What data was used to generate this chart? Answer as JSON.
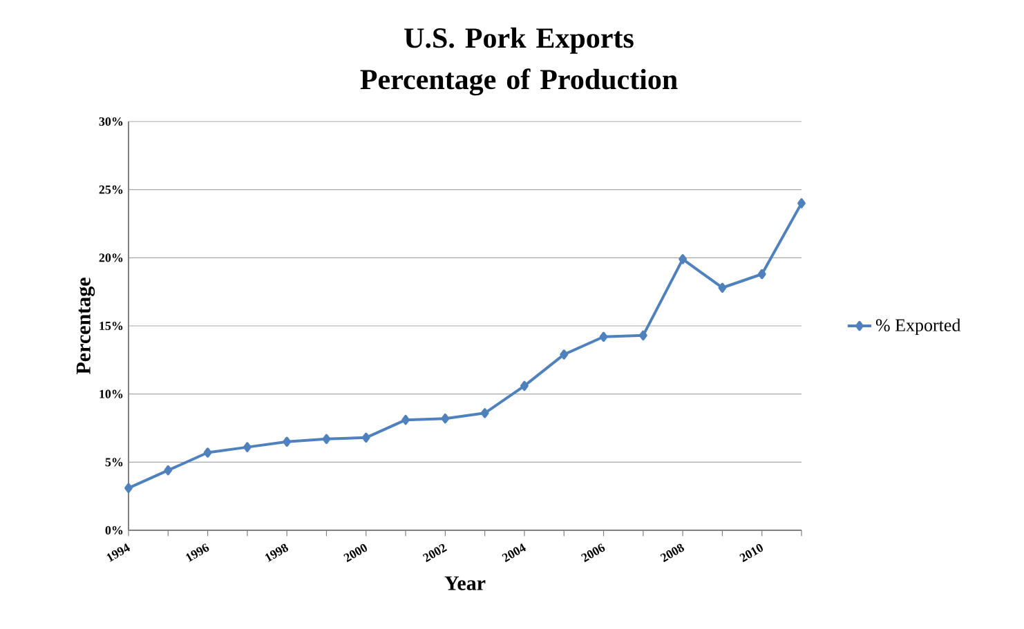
{
  "chart_data": {
    "type": "line",
    "title": "U.S. Pork Exports Percentage of Production",
    "xlabel": "Year",
    "ylabel": "Percentage",
    "x": [
      1994,
      1995,
      1996,
      1997,
      1998,
      1999,
      2000,
      2001,
      2002,
      2003,
      2004,
      2005,
      2006,
      2007,
      2008,
      2009,
      2010,
      2011
    ],
    "series": [
      {
        "name": "% Exported",
        "color": "#4f81bd",
        "values": [
          3.1,
          4.4,
          5.7,
          6.1,
          6.5,
          6.7,
          6.8,
          8.1,
          8.2,
          8.6,
          10.6,
          12.9,
          14.2,
          14.3,
          19.9,
          17.8,
          18.8,
          24.0
        ]
      }
    ],
    "xlim": [
      1994,
      2011
    ],
    "xticks": [
      1994,
      {
        "value": 1995,
        "label": null
      },
      1996,
      {
        "value": 1997,
        "label": null
      },
      1998,
      {
        "value": 1999,
        "label": null
      },
      2000,
      {
        "value": 2001,
        "label": null
      },
      2002,
      {
        "value": 2003,
        "label": null
      },
      2004,
      {
        "value": 2005,
        "label": null
      },
      2006,
      {
        "value": 2007,
        "label": null
      },
      2008,
      {
        "value": 2009,
        "label": null
      },
      2010,
      {
        "value": 2011,
        "label": null
      }
    ],
    "ylim": [
      0,
      30
    ],
    "yticks": [
      {
        "value": 0,
        "label": "0%"
      },
      {
        "value": 5,
        "label": "5%"
      },
      {
        "value": 10,
        "label": "10%"
      },
      {
        "value": 15,
        "label": "15%"
      },
      {
        "value": 20,
        "label": "20%"
      },
      {
        "value": 25,
        "label": "25%"
      },
      {
        "value": 30,
        "label": "30%"
      }
    ],
    "grid": "y",
    "legend": "right",
    "marker": "diamond",
    "line_style": "solid"
  }
}
